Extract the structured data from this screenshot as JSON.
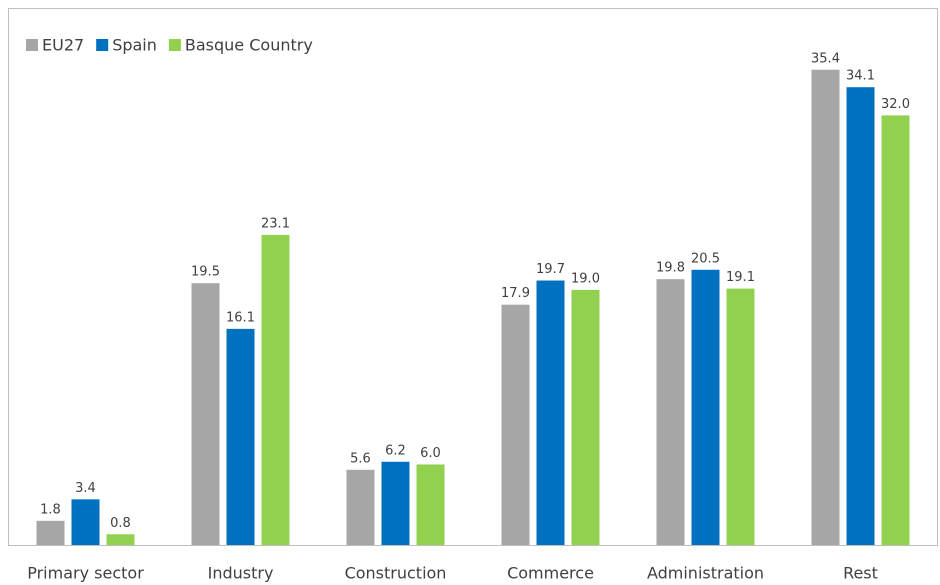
{
  "chart_data": {
    "type": "bar",
    "categories": [
      "Primary sector",
      "Industry",
      "Construction",
      "Commerce",
      "Administration",
      "Rest"
    ],
    "series": [
      {
        "name": "EU27",
        "color": "#a6a6a6",
        "values": [
          1.8,
          19.5,
          5.6,
          17.9,
          19.8,
          35.4
        ],
        "value_labels": [
          "1.8",
          "19.5",
          "5.6",
          "17.9",
          "19.8",
          "35.4"
        ]
      },
      {
        "name": "Spain",
        "color": "#0070c0",
        "values": [
          3.4,
          16.1,
          6.2,
          19.7,
          20.5,
          34.1
        ],
        "value_labels": [
          "3.4",
          "16.1",
          "6.2",
          "19.7",
          "20.5",
          "34.1"
        ]
      },
      {
        "name": "Basque Country",
        "color": "#92d050",
        "values": [
          0.8,
          23.1,
          6.0,
          19.0,
          19.1,
          32.0
        ],
        "value_labels": [
          "0.8",
          "23.1",
          "6.0",
          "19.0",
          "19.1",
          "32.0"
        ]
      }
    ],
    "ylim": [
      0,
      40
    ],
    "legend": "top-left"
  }
}
